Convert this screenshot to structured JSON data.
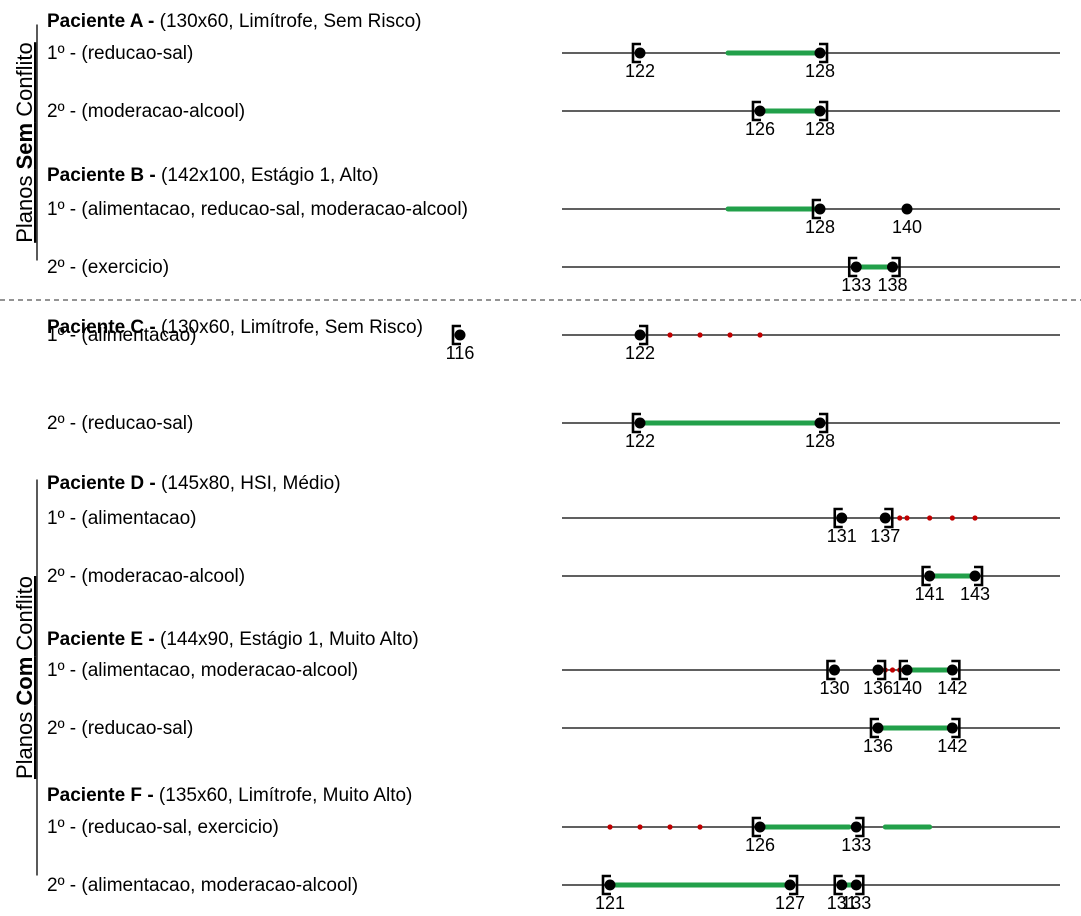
{
  "groups": [
    {
      "label_prefix": "Planos ",
      "label_bold": "Sem",
      "label_suffix": " Conflito",
      "patients": [
        {
          "title": "Paciente A -",
          "info": " (130x60, Limítrofe, Sem Risco)",
          "plans": [
            {
              "label": "1º - (reducao-sal)",
              "brackets": [
                {
                  "value": 122,
                  "side": "left"
                },
                {
                  "value": 128,
                  "side": "right"
                }
              ],
              "points": [
                122,
                128
              ],
              "green": [
                [
                  128.2,
                  128
                ]
              ],
              "red_dots": []
            },
            {
              "label": "2º - (moderacao-alcool)",
              "brackets": [
                {
                  "value": 126,
                  "side": "left"
                },
                {
                  "value": 128,
                  "side": "right"
                }
              ],
              "points": [
                126,
                128
              ],
              "green": [
                [
                  126,
                  128
                ]
              ],
              "red_dots": []
            }
          ]
        },
        {
          "title": "Paciente B -",
          "info": " (142x100, Estágio 1, Alto)",
          "plans": [
            {
              "label": "1º - (alimentacao, reducao-sal, moderacao-alcool)",
              "brackets": [
                {
                  "value": 128,
                  "side": "left"
                },
                {
                  "value": 140,
                  "side": "none"
                }
              ],
              "points": [
                128,
                140
              ],
              "green": [
                [
                  128.2,
                  128
                ]
              ],
              "red_dots": []
            },
            {
              "label": "2º - (exercicio)",
              "brackets": [
                {
                  "value": 133,
                  "side": "left"
                },
                {
                  "value": 138,
                  "side": "right"
                }
              ],
              "points": [
                133,
                138
              ],
              "green": [
                [
                  133,
                  138
                ]
              ],
              "red_dots": []
            }
          ]
        }
      ]
    },
    {
      "label_prefix": "Planos ",
      "label_bold": "Com",
      "label_suffix": " Conflito",
      "patients": [
        {
          "title": "Paciente C -",
          "info": " (130x60, Limítrofe, Sem Risco)",
          "plans": [
            {
              "label": "1º - (alimentacao)",
              "brackets": [
                {
                  "value": 116,
                  "side": "left"
                },
                {
                  "value": 122,
                  "side": "right"
                }
              ],
              "points": [
                116,
                122
              ],
              "green": [],
              "red_dots": [
                123,
                124,
                125,
                126
              ]
            },
            {
              "label": "2º - (reducao-sal)",
              "brackets": [
                {
                  "value": 122,
                  "side": "left"
                },
                {
                  "value": 128,
                  "side": "right"
                }
              ],
              "points": [
                122,
                128
              ],
              "green": [
                [
                  122,
                  128
                ]
              ],
              "red_dots": []
            }
          ]
        },
        {
          "title": "Paciente D -",
          "info": " (145x80, HSI, Médio)",
          "plans": [
            {
              "label": "1º - (alimentacao)",
              "brackets": [
                {
                  "value": 131,
                  "side": "left"
                },
                {
                  "value": 137,
                  "side": "right"
                }
              ],
              "points": [
                131,
                137
              ],
              "green": [],
              "red_dots": [
                139,
                140,
                141,
                142,
                143
              ]
            },
            {
              "label": "2º - (moderacao-alcool)",
              "brackets": [
                {
                  "value": 141,
                  "side": "left"
                },
                {
                  "value": 143,
                  "side": "right"
                }
              ],
              "points": [
                141,
                143
              ],
              "green": [
                [
                  141,
                  143
                ]
              ],
              "red_dots": []
            }
          ]
        },
        {
          "title": "Paciente E -",
          "info": " (144x90, Estágio 1, Muito Alto)",
          "plans": [
            {
              "label": "1º - (alimentacao, moderacao-alcool)",
              "brackets": [
                {
                  "value": 130,
                  "side": "left"
                },
                {
                  "value": 136,
                  "side": "right"
                },
                {
                  "value": 140,
                  "side": "left"
                },
                {
                  "value": 142,
                  "side": "right"
                }
              ],
              "points": [
                130,
                136,
                140,
                142
              ],
              "green": [
                [
                  140,
                  142
                ]
              ],
              "red_dots": [
                137,
                138,
                139
              ]
            },
            {
              "label": "2º - (reducao-sal)",
              "brackets": [
                {
                  "value": 136,
                  "side": "left"
                },
                {
                  "value": 142,
                  "side": "right"
                }
              ],
              "points": [
                136,
                142
              ],
              "green": [
                [
                  136,
                  142
                ]
              ],
              "red_dots": []
            }
          ]
        },
        {
          "title": "Paciente F -",
          "info": " (135x60, Limítrofe, Muito Alto)",
          "plans": [
            {
              "label": "1º - (reducao-sal, exercicio)",
              "brackets": [
                {
                  "value": 126,
                  "side": "left"
                },
                {
                  "value": 133,
                  "side": "right"
                }
              ],
              "points": [
                126,
                133
              ],
              "green": [
                [
                  126,
                  132
                ],
                [
                  137,
                  141
                ]
              ],
              "red_dots": [
                121,
                122,
                123,
                124
              ]
            },
            {
              "label": "2º - (alimentacao, moderacao-alcool)",
              "brackets": [
                {
                  "value": 121,
                  "side": "left"
                },
                {
                  "value": 127,
                  "side": "right"
                },
                {
                  "value": 131,
                  "side": "left"
                },
                {
                  "value": 133,
                  "side": "right"
                }
              ],
              "points": [
                121,
                127,
                131,
                133
              ],
              "green": [
                [
                  121,
                  127
                ],
                [
                  131,
                  133
                ]
              ],
              "red_dots": []
            }
          ]
        }
      ]
    }
  ],
  "colors": {
    "green": "#22a04a",
    "red": "#c00000",
    "line": "#000000",
    "separator": "#555555"
  }
}
